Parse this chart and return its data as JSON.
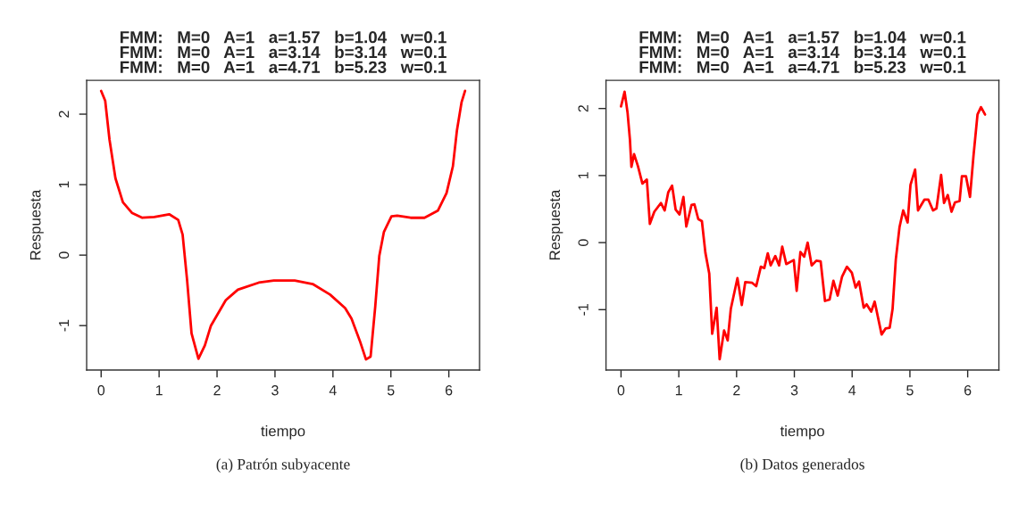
{
  "chart_data": [
    {
      "type": "line",
      "title": "FMM:   M=0   A=1   a=1.57   b=1.04   w=0.1\nFMM:   M=0   A=1   a=3.14   b=3.14   w=0.1\nFMM:   M=0   A=1   a=4.71   b=5.23   w=0.1",
      "xlabel": "tiempo",
      "ylabel": "Respuesta",
      "color": "#ff0000",
      "x": [
        0,
        0.07,
        0.144,
        0.247,
        0.376,
        0.53,
        0.71,
        0.917,
        1.174,
        1.33,
        1.406,
        1.483,
        1.56,
        1.679,
        1.79,
        1.895,
        2.15,
        2.36,
        2.72,
        2.98,
        3.34,
        3.65,
        3.95,
        4.21,
        4.32,
        4.47,
        4.57,
        4.65,
        4.73,
        4.8,
        4.88,
        5.01,
        5.11,
        5.34,
        5.58,
        5.81,
        5.96,
        6.07,
        6.14,
        6.22,
        6.28
      ],
      "values": [
        2.33,
        2.19,
        1.64,
        1.09,
        0.75,
        0.6,
        0.53,
        0.54,
        0.58,
        0.5,
        0.29,
        -0.35,
        -1.11,
        -1.47,
        -1.28,
        -1.0,
        -0.64,
        -0.49,
        -0.39,
        -0.36,
        -0.36,
        -0.41,
        -0.56,
        -0.75,
        -0.9,
        -1.23,
        -1.48,
        -1.44,
        -0.73,
        -0.01,
        0.33,
        0.55,
        0.56,
        0.53,
        0.53,
        0.63,
        0.88,
        1.26,
        1.77,
        2.17,
        2.33
      ],
      "xlim": [
        -0.25,
        6.53
      ],
      "ylim": [
        -1.63,
        2.48
      ],
      "xticks": [
        0,
        1,
        2,
        3,
        4,
        5,
        6
      ],
      "yticks": [
        -1,
        0,
        1,
        2
      ],
      "annotations": [
        "(a) Patrón subyacente"
      ]
    },
    {
      "type": "line",
      "title": "FMM:   M=0   A=1   a=1.57   b=1.04   w=0.1\nFMM:   M=0   A=1   a=3.14   b=3.14   w=0.1\nFMM:   M=0   A=1   a=4.71   b=5.23   w=0.1",
      "xlabel": "tiempo",
      "ylabel": "Respuesta",
      "color": "#ff0000",
      "x": [
        0,
        0.062,
        0.113,
        0.154,
        0.18,
        0.226,
        0.293,
        0.37,
        0.447,
        0.499,
        0.576,
        0.69,
        0.756,
        0.817,
        0.884,
        0.946,
        1.013,
        1.08,
        1.13,
        1.22,
        1.27,
        1.337,
        1.4,
        1.46,
        1.527,
        1.578,
        1.655,
        1.707,
        1.784,
        1.846,
        1.9,
        2.015,
        2.09,
        2.15,
        2.27,
        2.34,
        2.42,
        2.48,
        2.54,
        2.59,
        2.67,
        2.736,
        2.79,
        2.86,
        2.99,
        3.04,
        3.105,
        3.17,
        3.23,
        3.3,
        3.38,
        3.455,
        3.53,
        3.61,
        3.676,
        3.75,
        3.825,
        3.91,
        3.995,
        4.06,
        4.12,
        4.2,
        4.25,
        4.33,
        4.39,
        4.51,
        4.58,
        4.65,
        4.7,
        4.756,
        4.82,
        4.884,
        4.96,
        5.01,
        5.09,
        5.14,
        5.25,
        5.32,
        5.4,
        5.46,
        5.54,
        5.59,
        5.656,
        5.72,
        5.78,
        5.86,
        5.9,
        5.97,
        6.04,
        6.1,
        6.17,
        6.23,
        6.3
      ],
      "values": [
        2.03,
        2.25,
        1.94,
        1.54,
        1.13,
        1.32,
        1.14,
        0.88,
        0.94,
        0.28,
        0.46,
        0.59,
        0.48,
        0.75,
        0.85,
        0.49,
        0.42,
        0.68,
        0.24,
        0.56,
        0.57,
        0.35,
        0.32,
        -0.15,
        -0.46,
        -1.36,
        -0.97,
        -1.74,
        -1.31,
        -1.46,
        -0.99,
        -0.53,
        -0.93,
        -0.59,
        -0.6,
        -0.65,
        -0.36,
        -0.38,
        -0.16,
        -0.34,
        -0.2,
        -0.34,
        -0.06,
        -0.32,
        -0.26,
        -0.72,
        -0.14,
        -0.21,
        0.0,
        -0.34,
        -0.27,
        -0.28,
        -0.87,
        -0.85,
        -0.57,
        -0.79,
        -0.51,
        -0.36,
        -0.45,
        -0.67,
        -0.58,
        -0.97,
        -0.92,
        -1.03,
        -0.88,
        -1.37,
        -1.28,
        -1.27,
        -0.99,
        -0.25,
        0.23,
        0.48,
        0.3,
        0.86,
        1.09,
        0.48,
        0.64,
        0.64,
        0.48,
        0.51,
        1.01,
        0.59,
        0.71,
        0.46,
        0.6,
        0.62,
        0.99,
        0.99,
        0.68,
        1.29,
        1.91,
        2.02,
        1.91
      ],
      "xlim": [
        -0.26,
        6.54
      ],
      "ylim": [
        -1.9,
        2.42
      ],
      "xticks": [
        0,
        1,
        2,
        3,
        4,
        5,
        6
      ],
      "yticks": [
        -1,
        0,
        1,
        2
      ],
      "annotations": [
        "(b) Datos generados"
      ]
    }
  ]
}
